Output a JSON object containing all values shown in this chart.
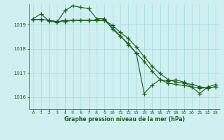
{
  "title": "Graphe pression niveau de la mer (hPa)",
  "bg_color": "#cff0f0",
  "grid_color": "#a8dcdc",
  "line_color": "#1a5c1a",
  "marker_color": "#1a5c1a",
  "ylim": [
    1015.5,
    1019.85
  ],
  "yticks": [
    1016,
    1017,
    1018,
    1019
  ],
  "xlim": [
    -0.5,
    23.5
  ],
  "xticks": [
    0,
    1,
    2,
    3,
    4,
    5,
    6,
    7,
    8,
    9,
    10,
    11,
    12,
    13,
    14,
    15,
    16,
    17,
    18,
    19,
    20,
    21,
    22,
    23
  ],
  "series1_x": [
    0,
    1,
    2,
    3,
    4,
    5,
    6,
    7,
    8,
    9,
    10,
    11,
    12,
    13,
    14,
    15,
    16,
    17,
    18,
    19,
    20,
    21,
    22,
    23
  ],
  "series1_y": [
    1019.25,
    1019.45,
    1019.15,
    1019.1,
    1019.58,
    1019.78,
    1019.72,
    1019.67,
    1019.25,
    1019.25,
    1018.82,
    1018.52,
    1018.22,
    1017.82,
    1016.15,
    1016.5,
    1016.72,
    1016.67,
    1016.72,
    1016.62,
    1016.42,
    1016.15,
    1016.42,
    1016.52
  ],
  "series2_x": [
    0,
    1,
    2,
    3,
    4,
    5,
    6,
    7,
    8,
    9,
    10,
    11,
    12,
    13,
    14,
    15,
    16,
    17,
    18,
    19,
    20,
    21,
    22,
    23
  ],
  "series2_y": [
    1019.2,
    1019.22,
    1019.18,
    1019.13,
    1019.13,
    1019.18,
    1019.18,
    1019.18,
    1019.18,
    1019.18,
    1018.88,
    1018.53,
    1018.18,
    1017.83,
    1017.48,
    1017.08,
    1016.73,
    1016.58,
    1016.53,
    1016.48,
    1016.43,
    1016.38,
    1016.38,
    1016.43
  ],
  "series3_x": [
    0,
    1,
    2,
    3,
    4,
    5,
    6,
    7,
    8,
    9,
    10,
    11,
    12,
    13,
    14,
    15,
    16,
    17,
    18,
    19,
    20,
    21,
    22,
    23
  ],
  "series3_y": [
    1019.2,
    1019.22,
    1019.18,
    1019.13,
    1019.18,
    1019.18,
    1019.18,
    1019.18,
    1019.18,
    1019.18,
    1018.98,
    1018.68,
    1018.43,
    1018.08,
    1017.68,
    1017.28,
    1016.98,
    1016.73,
    1016.63,
    1016.58,
    1016.53,
    1016.43,
    1016.38,
    1016.43
  ]
}
